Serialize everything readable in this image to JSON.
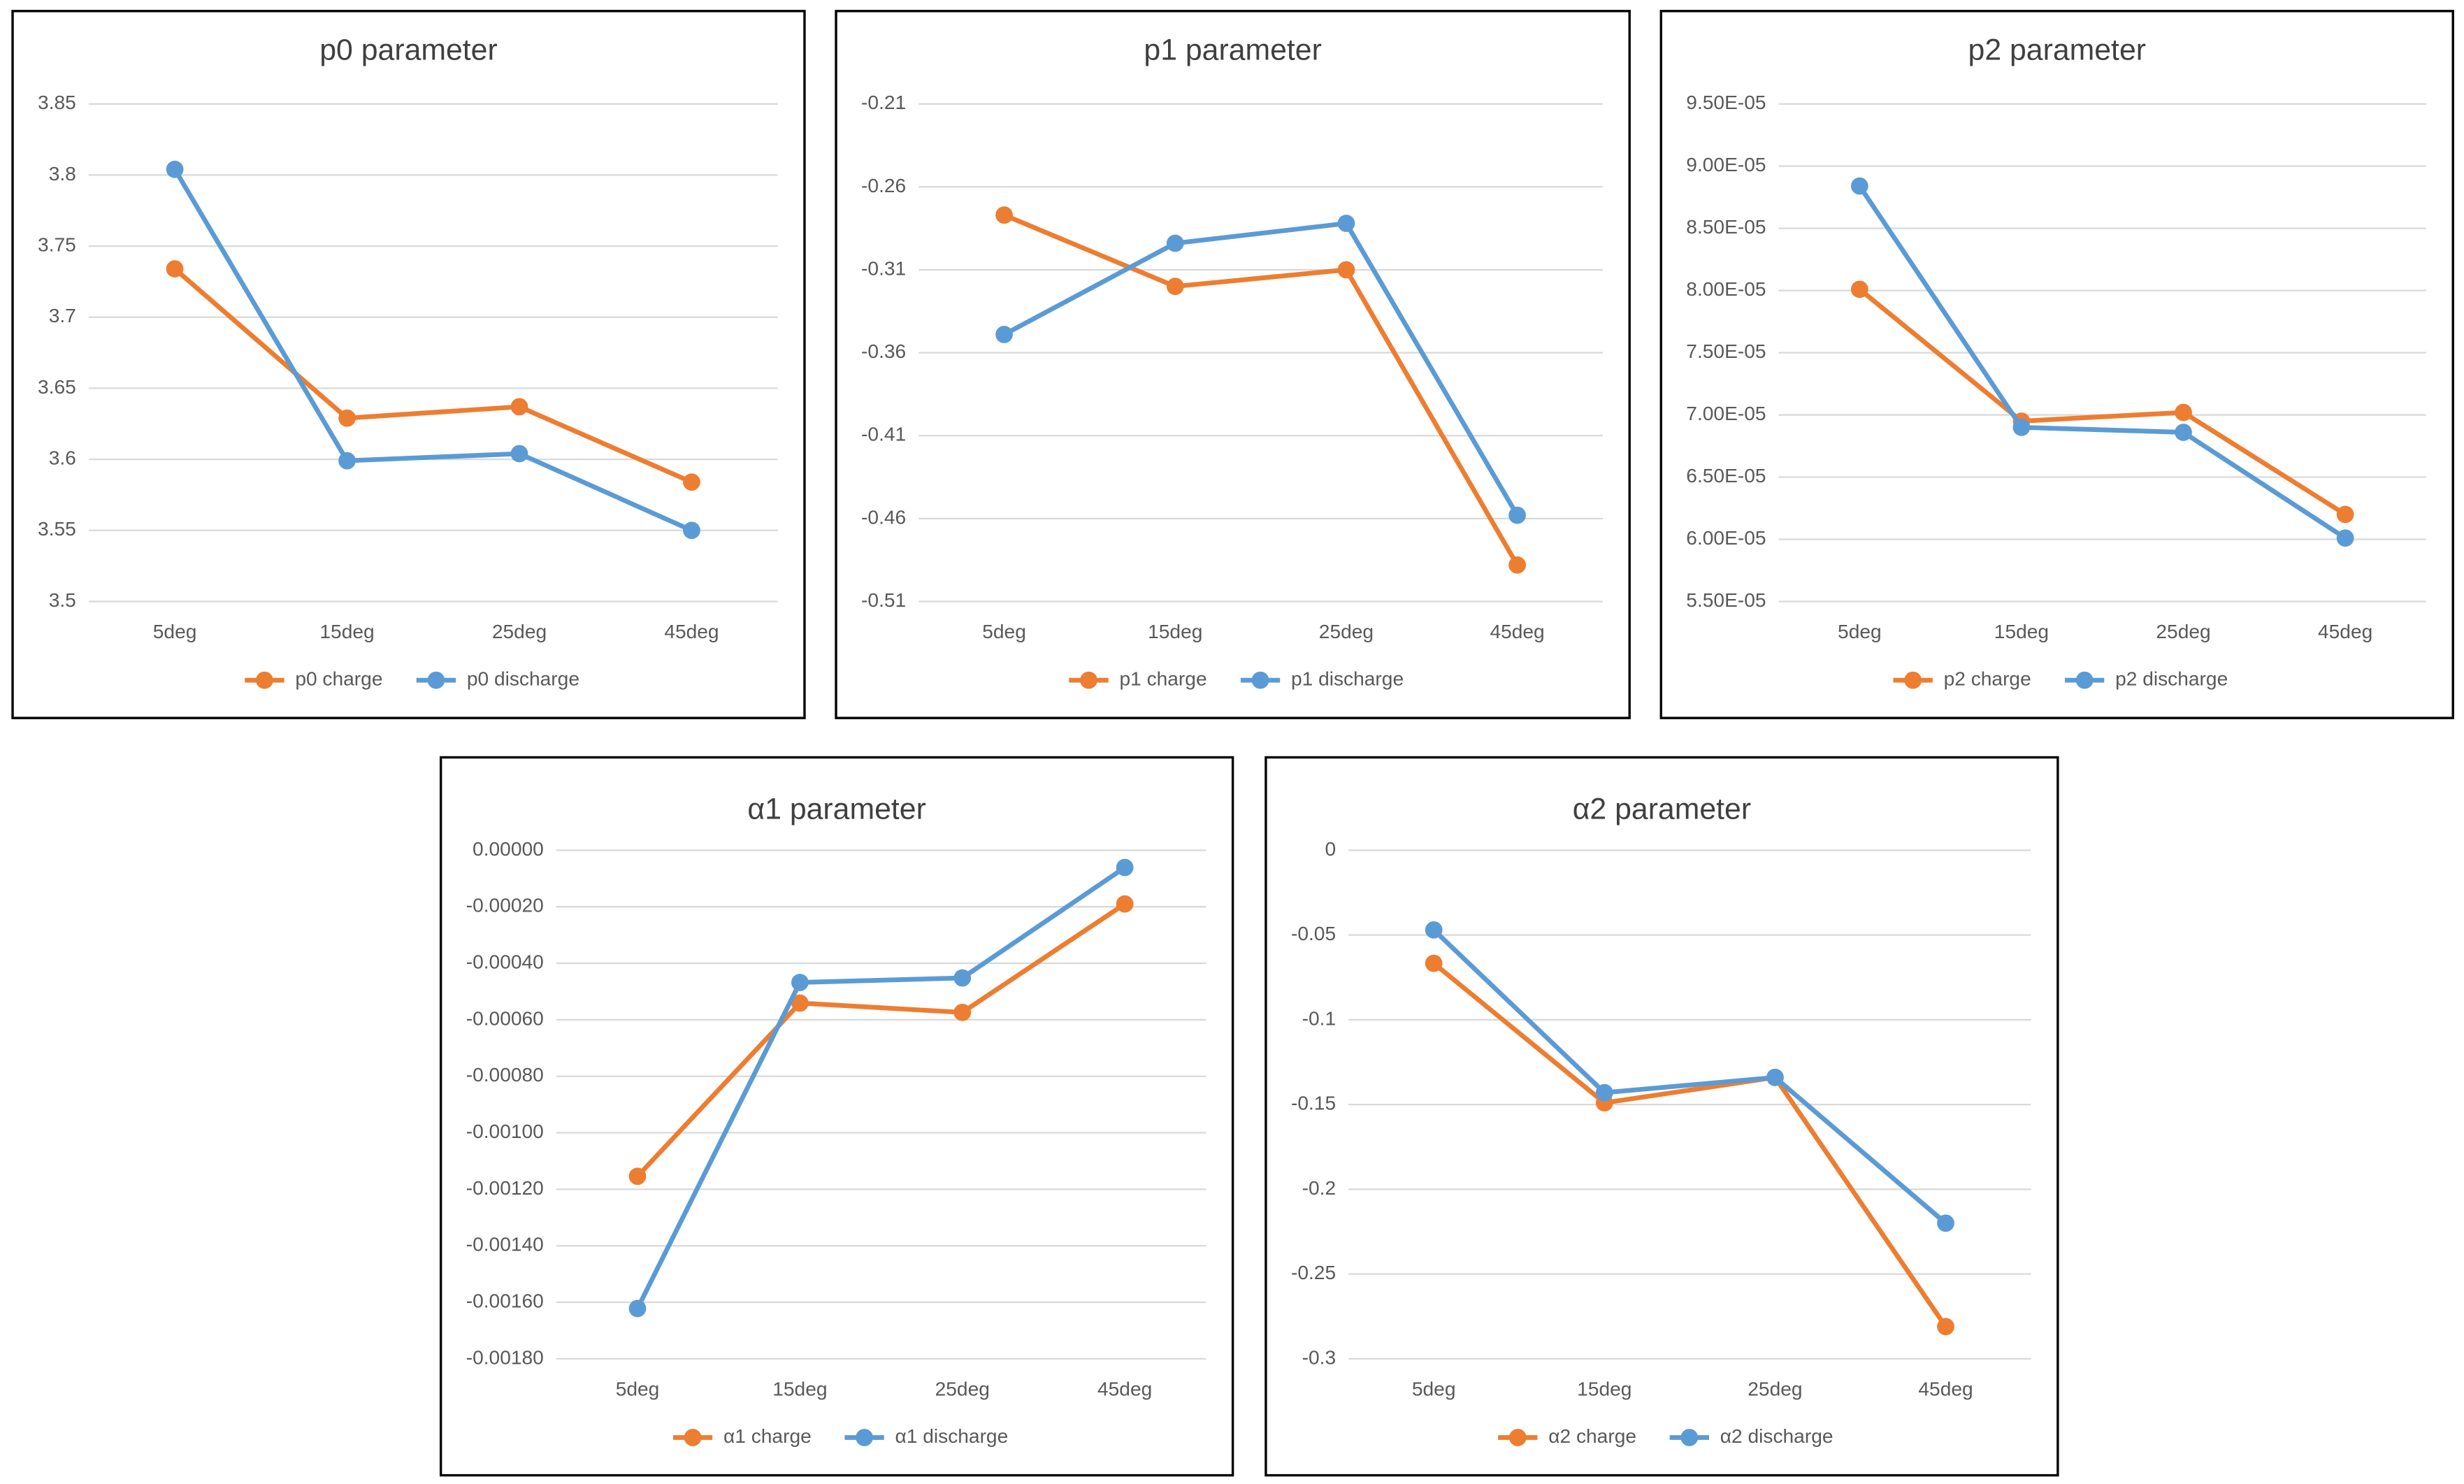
{
  "chart_data": [
    {
      "type": "line",
      "title": "p0 parameter",
      "categories": [
        "5deg",
        "15deg",
        "25deg",
        "45deg"
      ],
      "series": [
        {
          "name": "p0 charge",
          "color": "#ED7D31",
          "values": [
            3.734,
            3.629,
            3.637,
            3.584
          ]
        },
        {
          "name": "p0 discharge",
          "color": "#5B9BD5",
          "values": [
            3.804,
            3.599,
            3.604,
            3.55
          ]
        }
      ],
      "ylim": [
        3.5,
        3.85
      ],
      "yticks": [
        3.5,
        3.55,
        3.6,
        3.65,
        3.7,
        3.75,
        3.8,
        3.85
      ],
      "grid": true,
      "legend": "bottom"
    },
    {
      "type": "line",
      "title": "p1 parameter",
      "categories": [
        "5deg",
        "15deg",
        "25deg",
        "45deg"
      ],
      "series": [
        {
          "name": "p1 charge",
          "color": "#ED7D31",
          "values": [
            -0.277,
            -0.32,
            -0.31,
            -0.488
          ]
        },
        {
          "name": "p1 discharge",
          "color": "#5B9BD5",
          "values": [
            -0.349,
            -0.294,
            -0.282,
            -0.458
          ]
        }
      ],
      "ylim": [
        -0.51,
        -0.21
      ],
      "yticks": [
        -0.51,
        -0.46,
        -0.41,
        -0.36,
        -0.31,
        -0.26,
        -0.21
      ],
      "grid": true,
      "legend": "bottom"
    },
    {
      "type": "line",
      "title": "p2 parameter",
      "categories": [
        "5deg",
        "15deg",
        "25deg",
        "45deg"
      ],
      "series": [
        {
          "name": "p2 charge",
          "color": "#ED7D31",
          "values": [
            8.01e-05,
            6.95e-05,
            7.02e-05,
            6.2e-05
          ]
        },
        {
          "name": "p2 discharge",
          "color": "#5B9BD5",
          "values": [
            8.84e-05,
            6.9e-05,
            6.86e-05,
            6.01e-05
          ]
        }
      ],
      "ylim": [
        5.5e-05,
        9.5e-05
      ],
      "yticks": [
        {
          "value": 5.5e-05,
          "label": "5.50E-05"
        },
        {
          "value": 6e-05,
          "label": "6.00E-05"
        },
        {
          "value": 6.5e-05,
          "label": "6.50E-05"
        },
        {
          "value": 7e-05,
          "label": "7.00E-05"
        },
        {
          "value": 7.5e-05,
          "label": "7.50E-05"
        },
        {
          "value": 8e-05,
          "label": "8.00E-05"
        },
        {
          "value": 8.5e-05,
          "label": "8.50E-05"
        },
        {
          "value": 9e-05,
          "label": "9.00E-05"
        },
        {
          "value": 9.5e-05,
          "label": "9.50E-05"
        }
      ],
      "grid": true,
      "legend": "bottom"
    },
    {
      "type": "line",
      "title": "α1 parameter",
      "categories": [
        "5deg",
        "15deg",
        "25deg",
        "45deg"
      ],
      "series": [
        {
          "name": "α1 charge",
          "color": "#ED7D31",
          "values": [
            -0.001154,
            -0.000541,
            -0.000574,
            -0.00019
          ]
        },
        {
          "name": "α1 discharge",
          "color": "#5B9BD5",
          "values": [
            -0.001622,
            -0.000468,
            -0.000452,
            -6.1e-05
          ]
        }
      ],
      "ylim": [
        -0.0018,
        0
      ],
      "yticks": [
        {
          "value": -0.0018,
          "label": "-0.00180"
        },
        {
          "value": -0.0016,
          "label": "-0.00160"
        },
        {
          "value": -0.0014,
          "label": "-0.00140"
        },
        {
          "value": -0.0012,
          "label": "-0.00120"
        },
        {
          "value": -0.001,
          "label": "-0.00100"
        },
        {
          "value": -0.0008,
          "label": "-0.00080"
        },
        {
          "value": -0.0006,
          "label": "-0.00060"
        },
        {
          "value": -0.0004,
          "label": "-0.00040"
        },
        {
          "value": -0.0002,
          "label": "-0.00020"
        },
        {
          "value": 0,
          "label": "0.00000"
        }
      ],
      "grid": true,
      "legend": "bottom"
    },
    {
      "type": "line",
      "title": "α2 parameter",
      "categories": [
        "5deg",
        "15deg",
        "25deg",
        "45deg"
      ],
      "series": [
        {
          "name": "α2 charge",
          "color": "#ED7D31",
          "values": [
            -0.0667,
            -0.149,
            -0.134,
            -0.281
          ]
        },
        {
          "name": "α2 discharge",
          "color": "#5B9BD5",
          "values": [
            -0.047,
            -0.143,
            -0.134,
            -0.22
          ]
        }
      ],
      "ylim": [
        -0.3,
        0
      ],
      "yticks": [
        -0.3,
        -0.25,
        -0.2,
        -0.15,
        -0.1,
        -0.05,
        0
      ],
      "grid": true,
      "legend": "bottom"
    }
  ]
}
